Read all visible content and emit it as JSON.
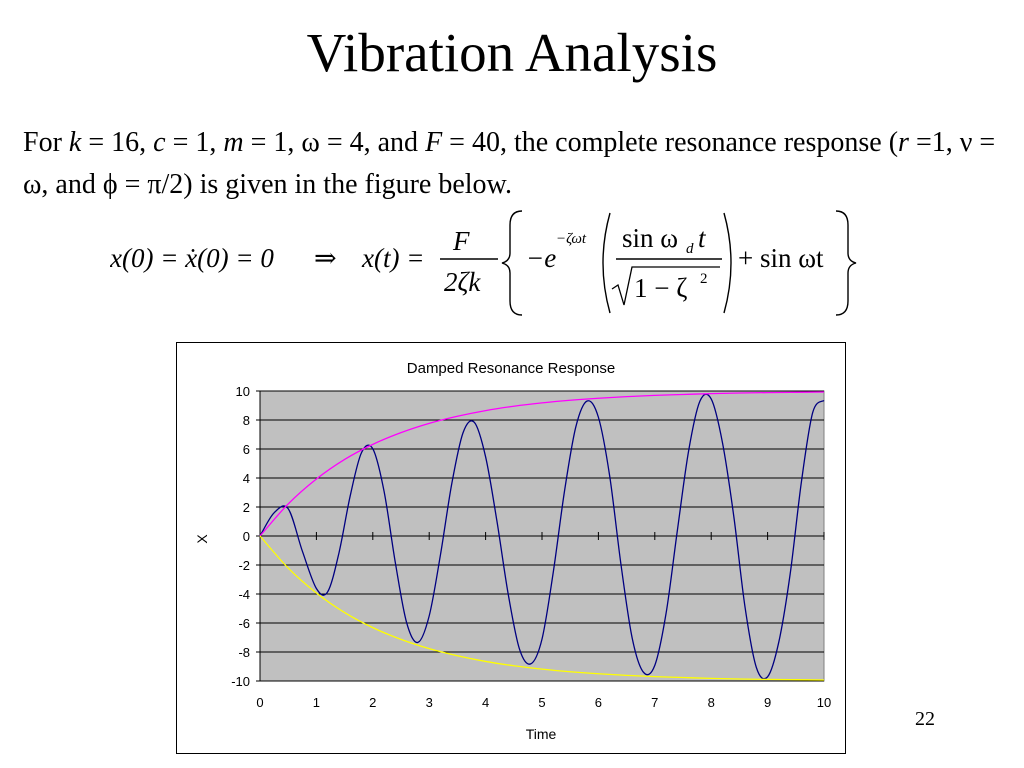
{
  "slide": {
    "title": "Vibration Analysis",
    "page_number": "22"
  },
  "intro": {
    "p1": "For ",
    "k_sym": "k",
    "p2": " = 16, ",
    "c_sym": "c",
    "p3": " = 1, ",
    "m_sym": "m",
    "p4": " = 1, ω = 4, and ",
    "F_sym": "F",
    "p5": " = 40, the complete resonance response (",
    "r_sym": "r",
    "p6": " =1, ν = ω, and ϕ = π/2) is given in the figure below."
  },
  "equation": {
    "lhs": "x(0) = ẋ(0) = 0",
    "implies": "⇒",
    "xt": "x(t) =",
    "num": "F",
    "den": "2ζk",
    "neg_e": "−e",
    "exponent": "−ζωt",
    "sin_num": "sin ω",
    "sub_d": "d",
    "t_var": "t",
    "sqrt_body": "1 − ζ",
    "sq": "2",
    "tail": "+ sin ωt"
  },
  "chart_data": {
    "type": "line",
    "title": "Damped Resonance Response",
    "xlabel": "Time",
    "ylabel": "X",
    "xlim": [
      0,
      10
    ],
    "ylim": [
      -10,
      10
    ],
    "x_ticks": [
      "0",
      "1",
      "2",
      "3",
      "4",
      "5",
      "6",
      "7",
      "8",
      "9",
      "10"
    ],
    "y_ticks": [
      "10",
      "8",
      "6",
      "4",
      "2",
      "0",
      "-2",
      "-4",
      "-6",
      "-8",
      "-10"
    ],
    "grid": "horizontal",
    "plot_background": "#c0c0c0",
    "series": [
      {
        "color": "#000080",
        "x": [
          0,
          0.25,
          0.5,
          0.75,
          1.0,
          1.2,
          1.4,
          1.6,
          1.8,
          2.0,
          2.2,
          2.4,
          2.6,
          2.8,
          3.0,
          3.2,
          3.4,
          3.6,
          3.8,
          4.0,
          4.2,
          4.4,
          4.6,
          4.8,
          5.0,
          5.2,
          5.4,
          5.6,
          5.8,
          6.0,
          6.2,
          6.4,
          6.6,
          6.8,
          7.0,
          7.2,
          7.4,
          7.6,
          7.8,
          8.0,
          8.2,
          8.4,
          8.6,
          8.8,
          9.0,
          9.2,
          9.4,
          9.6,
          9.8,
          10.0
        ],
        "y": [
          0.0,
          1.6,
          1.88,
          -1.03,
          -3.62,
          -3.85,
          -1.17,
          2.78,
          5.75,
          6.01,
          3.08,
          -1.85,
          -5.98,
          -7.34,
          -5.51,
          -1.29,
          3.6,
          7.12,
          7.84,
          5.46,
          1.05,
          -3.99,
          -7.79,
          -8.82,
          -7.11,
          -2.49,
          3.12,
          7.53,
          9.31,
          8.19,
          4.14,
          -1.96,
          -7.06,
          -9.4,
          -8.92,
          -5.33,
          0.38,
          5.88,
          9.3,
          9.45,
          6.43,
          1.37,
          -4.91,
          -9.06,
          -9.71,
          -7.29,
          -2.62,
          3.75,
          8.52,
          9.35
        ]
      },
      {
        "color": "#ff00ff",
        "x": [
          0,
          0.5,
          1,
          1.5,
          2,
          2.5,
          3,
          3.5,
          4,
          4.5,
          5,
          5.5,
          6,
          6.5,
          7,
          7.5,
          8,
          8.5,
          9,
          9.5,
          10
        ],
        "y": [
          0,
          2.21,
          3.93,
          5.28,
          6.32,
          7.13,
          7.77,
          8.26,
          8.65,
          8.95,
          9.18,
          9.36,
          9.5,
          9.61,
          9.7,
          9.76,
          9.82,
          9.86,
          9.89,
          9.91,
          9.93
        ]
      },
      {
        "color": "#ffff00",
        "x": [
          0,
          0.5,
          1,
          1.5,
          2,
          2.5,
          3,
          3.5,
          4,
          4.5,
          5,
          5.5,
          6,
          6.5,
          7,
          7.5,
          8,
          8.5,
          9,
          9.5,
          10
        ],
        "y": [
          0,
          -2.21,
          -3.93,
          -5.28,
          -6.32,
          -7.13,
          -7.77,
          -8.26,
          -8.65,
          -8.95,
          -9.18,
          -9.36,
          -9.5,
          -9.61,
          -9.7,
          -9.76,
          -9.82,
          -9.86,
          -9.89,
          -9.91,
          -9.93
        ]
      }
    ]
  }
}
